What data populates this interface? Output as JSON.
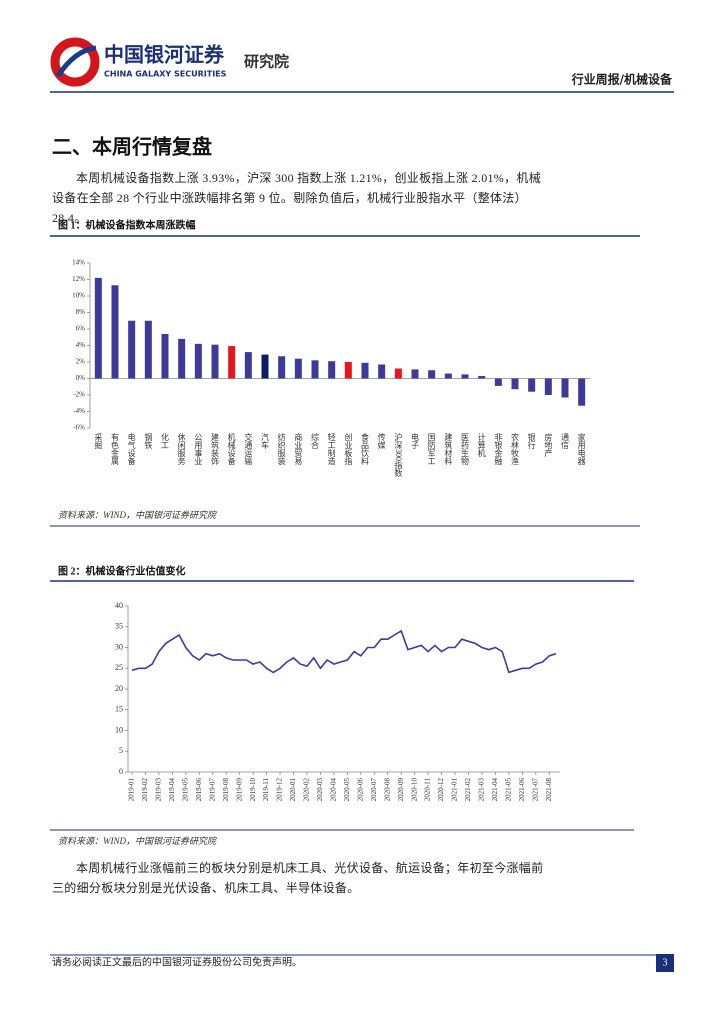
{
  "header": {
    "brand_cn": "中国银河证券",
    "brand_en": "CHINA GALAXY SECURITIES",
    "institute": "研究院",
    "report_type": "行业周报/机械设备"
  },
  "section_title": "二、本周行情复盘",
  "paragraphs": [
    "本周机械设备指数上涨 3.93%，沪深 300 指数上涨 1.21%，创业板指上涨 2.01%，机械设备在全部 28 个行业中涨跌幅排名第 9 位。剔除负值后，机械行业股指水平（整体法）28.4。",
    "本周机械行业涨幅前三的板块分别是机床工具、光伏设备、航运设备；年初至今涨幅前三的细分板块分别是光伏设备、机床工具、半导体设备。"
  ],
  "figures": [
    {
      "caption": "图 1：机械设备指数本周涨跌幅",
      "source": "资料来源：WIND，中国银河证券研究院"
    },
    {
      "caption": "图 2：机械设备行业估值变化",
      "source": "资料来源：WIND，中国银河证券研究院"
    }
  ],
  "chart_data": [
    {
      "type": "bar",
      "categories": [
        "采掘",
        "有色金属",
        "电气设备",
        "钢铁",
        "化工",
        "休闲服务",
        "公用事业",
        "建筑装饰",
        "机械设备",
        "交通运输",
        "汽车",
        "纺织服装",
        "商业贸易",
        "综合",
        "轻工制造",
        "创业板指",
        "食品饮料",
        "传媒",
        "沪深300指数",
        "电子",
        "国防军工",
        "建筑材料",
        "医药生物",
        "计算机",
        "非银金融",
        "农林牧渔",
        "银行",
        "房地产",
        "通信",
        "家用电器"
      ],
      "values": [
        12.2,
        11.3,
        7.0,
        7.0,
        5.4,
        4.8,
        4.2,
        4.1,
        3.93,
        3.2,
        2.9,
        2.7,
        2.4,
        2.2,
        2.1,
        2.01,
        1.9,
        1.7,
        1.21,
        1.1,
        1.0,
        0.6,
        0.5,
        0.3,
        -0.9,
        -1.3,
        -1.6,
        -2.0,
        -2.3,
        -3.3
      ],
      "colors": [
        "#3d3a9a",
        "#3d3a9a",
        "#3d3a9a",
        "#3d3a9a",
        "#3d3a9a",
        "#3d3a9a",
        "#3d3a9a",
        "#3d3a9a",
        "#e8141e",
        "#3d3a9a",
        "#0b1a6b",
        "#3d3a9a",
        "#3d3a9a",
        "#3d3a9a",
        "#3d3a9a",
        "#e8141e",
        "#3d3a9a",
        "#3d3a9a",
        "#e8141e",
        "#3d3a9a",
        "#3d3a9a",
        "#3d3a9a",
        "#3d3a9a",
        "#3d3a9a",
        "#3d3a9a",
        "#3d3a9a",
        "#3d3a9a",
        "#3d3a9a",
        "#3d3a9a",
        "#3d3a9a"
      ],
      "ylim": [
        -6,
        14
      ],
      "yticks": [
        {
          "value": -6,
          "label": "-6%"
        },
        {
          "value": -4,
          "label": "-4%"
        },
        {
          "value": -2,
          "label": "-2%"
        },
        {
          "value": 0,
          "label": "0%"
        },
        {
          "value": 2,
          "label": "2%"
        },
        {
          "value": 4,
          "label": "4%"
        },
        {
          "value": 6,
          "label": "6%"
        },
        {
          "value": 8,
          "label": "8%"
        },
        {
          "value": 10,
          "label": "10%"
        },
        {
          "value": 12,
          "label": "12%"
        },
        {
          "value": 14,
          "label": "14%"
        }
      ]
    },
    {
      "type": "line",
      "color": "#3d3aa8",
      "categories": [
        "2019-01",
        null,
        "2019-02",
        null,
        "2019-03",
        null,
        "2019-04",
        null,
        "2019-05",
        null,
        "2019-06",
        null,
        "2019-07",
        null,
        "2019-08",
        null,
        "2019-09",
        null,
        "2019-10",
        null,
        "2019-11",
        null,
        "2019-12",
        null,
        "2020-01",
        null,
        "2020-02",
        null,
        "2020-03",
        null,
        "2020-04",
        null,
        "2020-05",
        null,
        "2020-06",
        null,
        "2020-07",
        null,
        "2020-08",
        null,
        "2020-09",
        null,
        "2020-10",
        null,
        "2020-11",
        null,
        "2020-12",
        null,
        "2021-01",
        null,
        "2021-02",
        null,
        "2021-03",
        null,
        "2021-04",
        null,
        "2021-05",
        null,
        "2021-06",
        null,
        "2021-07",
        null,
        "2021-08",
        null
      ],
      "values": [
        24.5,
        25,
        25,
        26,
        29,
        31,
        32,
        33,
        30,
        28,
        27,
        28.5,
        28,
        28.5,
        27.5,
        27,
        27,
        27,
        26,
        26.5,
        25,
        24,
        25,
        26.5,
        27.5,
        26,
        25.5,
        27.5,
        25,
        27,
        26,
        26.5,
        27,
        29,
        28,
        30,
        30,
        32,
        32,
        33,
        34,
        29.5,
        30,
        30.5,
        29,
        30.5,
        29,
        30,
        30,
        32,
        31.5,
        31,
        30,
        29.5,
        30,
        29,
        24,
        24.5,
        25,
        25,
        26,
        26.5,
        28,
        28.5
      ],
      "ylim": [
        0,
        40
      ],
      "yticks": [
        0,
        5,
        10,
        15,
        20,
        25,
        30,
        35,
        40
      ]
    }
  ],
  "footer": {
    "disclaimer": "请务必阅读正文最后的中国银河证券股份公司免责声明。",
    "page": "3"
  }
}
